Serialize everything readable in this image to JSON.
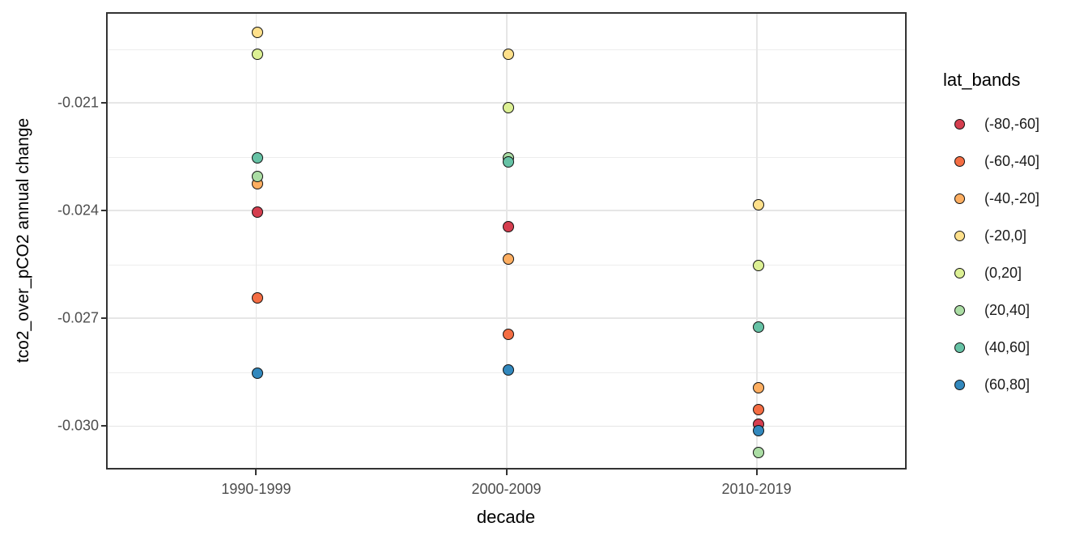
{
  "chart_data": {
    "type": "scatter",
    "title": "",
    "xlabel": "decade",
    "ylabel": "tco2_over_pCO2 annual change",
    "legend_title": "lat_bands",
    "legend_position": "right",
    "grid": true,
    "categories": [
      "1990-1999",
      "2000-2009",
      "2010-2019"
    ],
    "ylim": [
      -0.031218,
      -0.018474
    ],
    "y_major_ticks": [
      -0.021,
      -0.024,
      -0.027,
      -0.03
    ],
    "y_tick_labels": [
      "-0.021",
      "-0.024",
      "-0.027",
      "-0.030"
    ],
    "y_minor_ticks": [
      -0.0195,
      -0.0225,
      -0.0255,
      -0.0285
    ],
    "series": [
      {
        "name": "(-80,-60]",
        "color": "#D53E4F",
        "values": [
          -0.024,
          -0.0244,
          -0.0299
        ]
      },
      {
        "name": "(-60,-40]",
        "color": "#F46D43",
        "values": [
          -0.0264,
          -0.0274,
          -0.0295
        ]
      },
      {
        "name": "(-40,-20]",
        "color": "#FDAE61",
        "values": [
          -0.0232,
          -0.0253,
          -0.0289
        ]
      },
      {
        "name": "(-20,0]",
        "color": "#FEE08B",
        "values": [
          -0.019,
          -0.0196,
          -0.0238
        ]
      },
      {
        "name": "(0,20]",
        "color": "#DCF094",
        "values": [
          -0.0196,
          -0.0211,
          -0.0255
        ]
      },
      {
        "name": "(20,40]",
        "color": "#ABDDA4",
        "values": [
          -0.023,
          -0.0225,
          -0.0307
        ]
      },
      {
        "name": "(40,60]",
        "color": "#66C2A5",
        "values": [
          -0.0225,
          -0.0226,
          -0.0272
        ]
      },
      {
        "name": "(60,80]",
        "color": "#3288BD",
        "values": [
          -0.0285,
          -0.0284,
          -0.0301
        ]
      }
    ],
    "colors": {
      "panel_border": "#333333",
      "grid_major": "#e6e6e6",
      "grid_minor": "#ededed",
      "tick_label": "#4d4d4d",
      "point_stroke": "#111111",
      "background": "#ffffff"
    }
  }
}
